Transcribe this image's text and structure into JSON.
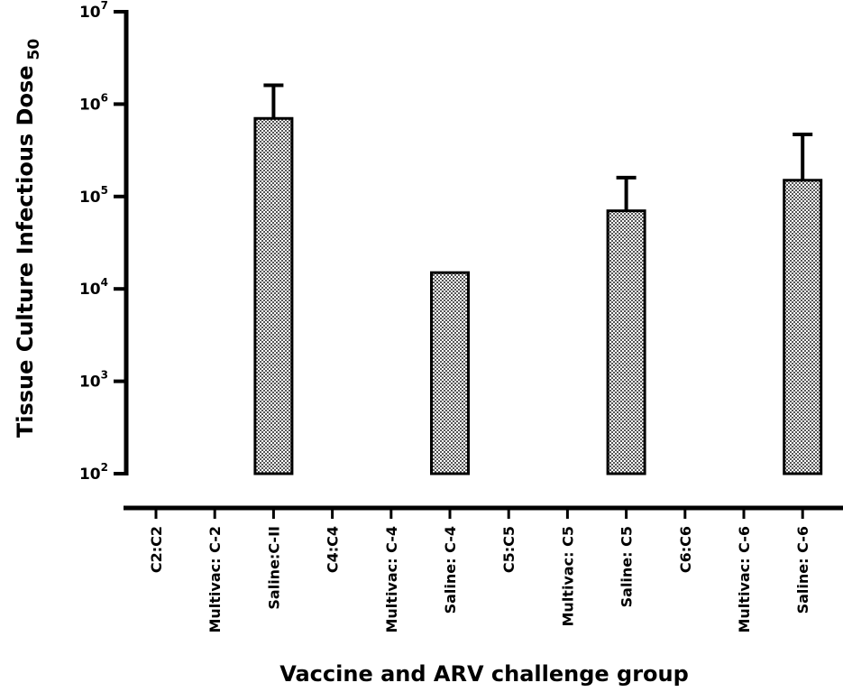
{
  "chart_data": {
    "type": "bar",
    "title": "",
    "xlabel": "Vaccine and ARV challenge group",
    "ylabel": "Tissue Culture Infectious Dose",
    "ylabel_subscript": "50",
    "yscale": "log",
    "ylim": [
      100,
      10000000
    ],
    "y_ticks": [
      {
        "base": "10",
        "exp": "2"
      },
      {
        "base": "10",
        "exp": "3"
      },
      {
        "base": "10",
        "exp": "4"
      },
      {
        "base": "10",
        "exp": "5"
      },
      {
        "base": "10",
        "exp": "6"
      },
      {
        "base": "10",
        "exp": "7"
      }
    ],
    "categories": [
      "C2:C2",
      "Multivac: C-2",
      "Saline:C-II",
      "C4:C4",
      "Multivac: C-4",
      "Saline: C-4",
      "C5:C5",
      "Multivac: C5",
      "Saline: C5",
      "C6:C6",
      "Multivac: C-6",
      "Saline: C-6"
    ],
    "values": [
      null,
      null,
      700000,
      null,
      null,
      15000,
      null,
      null,
      70000,
      null,
      null,
      150000
    ],
    "error_upper": [
      null,
      null,
      1600000,
      null,
      null,
      null,
      null,
      null,
      160000,
      null,
      null,
      470000
    ],
    "bar_fill": "checkered-gray",
    "grid": false,
    "legend": "none"
  }
}
